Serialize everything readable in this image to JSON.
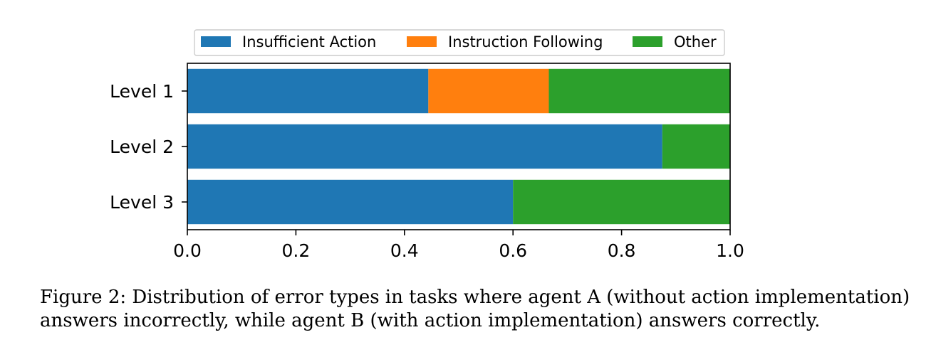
{
  "chart_data": {
    "type": "bar",
    "orientation": "horizontal",
    "stacked": true,
    "categories": [
      "Level 1",
      "Level 2",
      "Level 3"
    ],
    "series": [
      {
        "name": "Insufficient Action",
        "color": "#1f77b4",
        "values": [
          0.444,
          0.875,
          0.6
        ]
      },
      {
        "name": "Instruction Following",
        "color": "#ff7f0e",
        "values": [
          0.222,
          0.0,
          0.0
        ]
      },
      {
        "name": "Other",
        "color": "#2ca02c",
        "values": [
          0.334,
          0.125,
          0.4
        ]
      }
    ],
    "xlim": [
      0.0,
      1.0
    ],
    "xticks": [
      "0.0",
      "0.2",
      "0.4",
      "0.6",
      "0.8",
      "1.0"
    ],
    "xlabel": "",
    "ylabel": "",
    "legend_position": "top-center",
    "grid": false
  },
  "caption": "Figure 2: Distribution of error types in tasks where agent A (without action implementation) answers incorrectly, while agent B (with action implementation) answers correctly."
}
